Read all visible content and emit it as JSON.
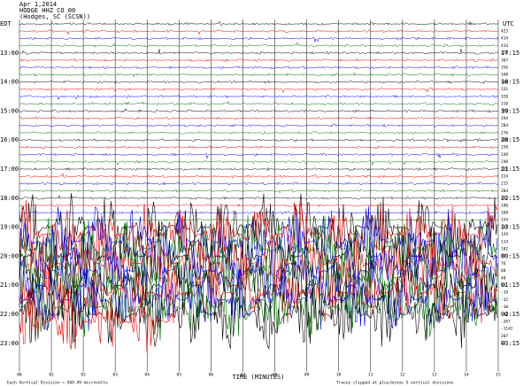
{
  "header": {
    "date": "Apr 1,2014",
    "station": "HODGE HHZ CO 00",
    "location": "(Hodges, SC (SCSN))"
  },
  "left_zone": "EDT",
  "right_zone": "UTC",
  "left_times": [
    "13:00",
    "14:00",
    "15:00",
    "16:00",
    "17:00",
    "18:00",
    "19:00",
    "20:00",
    "21:00",
    "22:00",
    "23:00"
  ],
  "right_times": [
    "17:15",
    "18:15",
    "19:15",
    "20:15",
    "21:15",
    "22:15",
    "23:15",
    "00:15",
    "01:15",
    "02:15",
    "03:15"
  ],
  "trace_offsets": [
    "423",
    "414",
    "414",
    "376",
    "367",
    "356",
    "348",
    "340",
    "331",
    "320",
    "310",
    "302",
    "294",
    "284",
    "276",
    "268",
    "258",
    "249",
    "240",
    "232",
    "224",
    "215",
    "204",
    "192",
    "180",
    "168",
    "154",
    "142",
    "129",
    "114",
    "102",
    "89",
    "76",
    "60",
    "40",
    "16",
    "-19",
    "-32",
    "-10",
    "-40",
    "-267",
    "-1142",
    "207",
    "12"
  ],
  "x_labels": [
    "00",
    "01",
    "02",
    "03",
    "04",
    "05",
    "06",
    "07",
    "08",
    "09",
    "10",
    "11",
    "12",
    "13",
    "14",
    "15"
  ],
  "x_title": "TIME (MINUTES)",
  "footer": {
    "left": "Each Vertical Division = 569.49 microvolts",
    "right": "Traces clipped at plus/minus 5 vertical divisions"
  }
}
